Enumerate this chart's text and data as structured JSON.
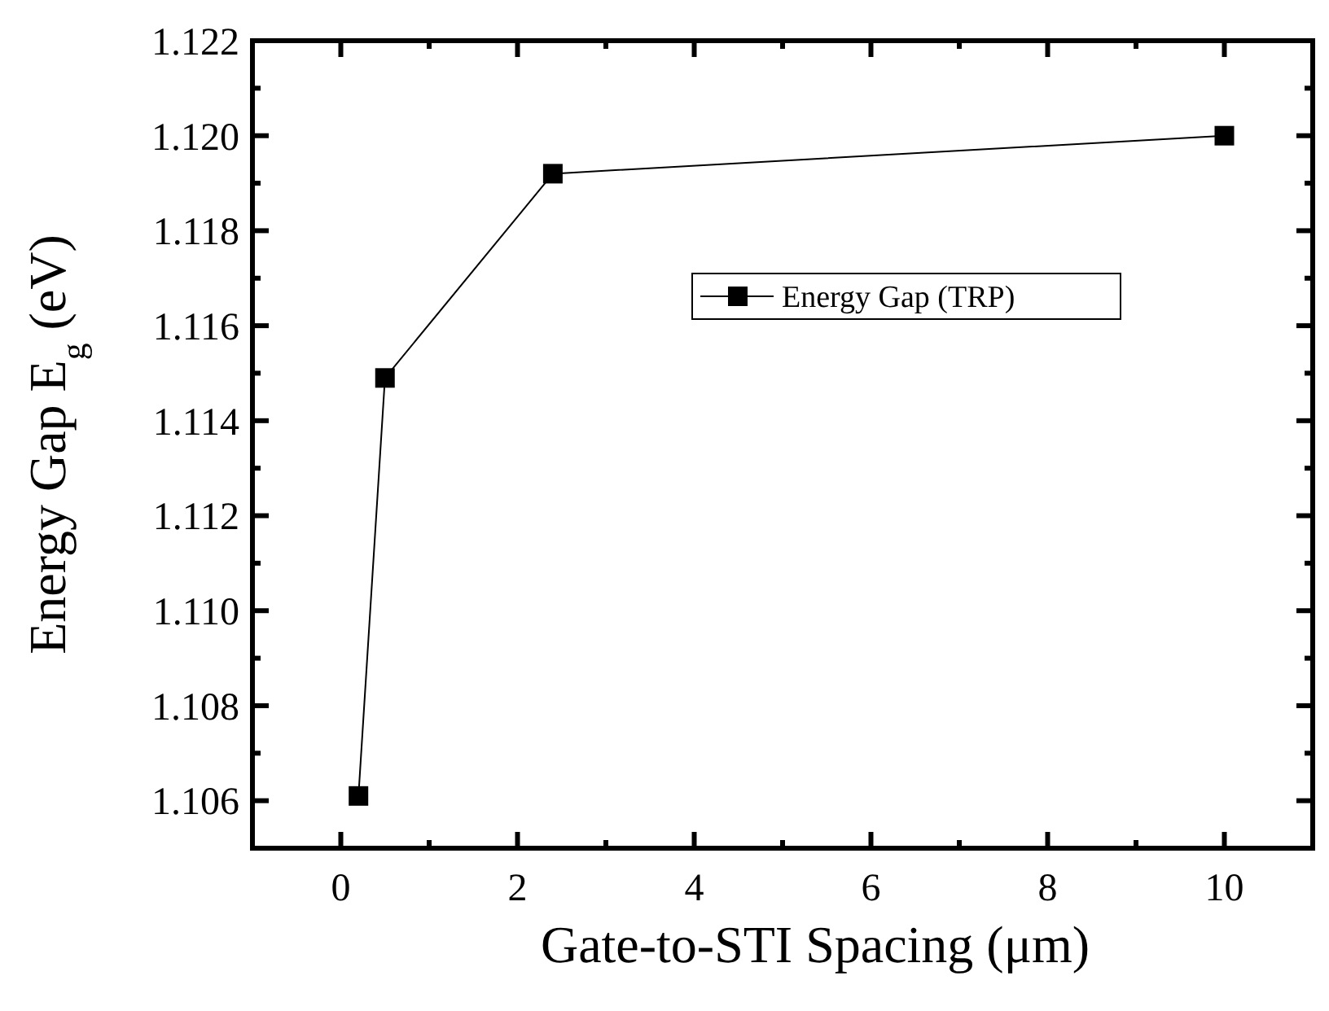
{
  "chart_data": {
    "type": "line",
    "xlabel": "Gate-to-STI Spacing (μm)",
    "ylabel": "Energy Gap E$_{g}$ (eV)",
    "x": [
      0.2,
      0.5,
      2.4,
      10
    ],
    "series": [
      {
        "name": "Energy Gap (TRP)",
        "color": "#000000",
        "values": [
          1.1061,
          1.1149,
          1.1192,
          1.12
        ]
      }
    ],
    "xlim": [
      -1,
      11
    ],
    "xticks": [
      0,
      2,
      4,
      6,
      8,
      10
    ],
    "ylim": [
      1.105,
      1.122
    ],
    "yticks": [
      {
        "value": 1.106,
        "label": "1.106"
      },
      {
        "value": 1.108,
        "label": "1.108"
      },
      {
        "value": 1.11,
        "label": "1.110"
      },
      {
        "value": 1.112,
        "label": "1.112"
      },
      {
        "value": 1.114,
        "label": "1.114"
      },
      {
        "value": 1.116,
        "label": "1.116"
      },
      {
        "value": 1.118,
        "label": "1.118"
      },
      {
        "value": 1.12,
        "label": "1.120"
      },
      {
        "value": 1.122,
        "label": "1.122"
      }
    ],
    "marker": "square",
    "line_style": "solid",
    "legend": "right",
    "grid": false
  }
}
